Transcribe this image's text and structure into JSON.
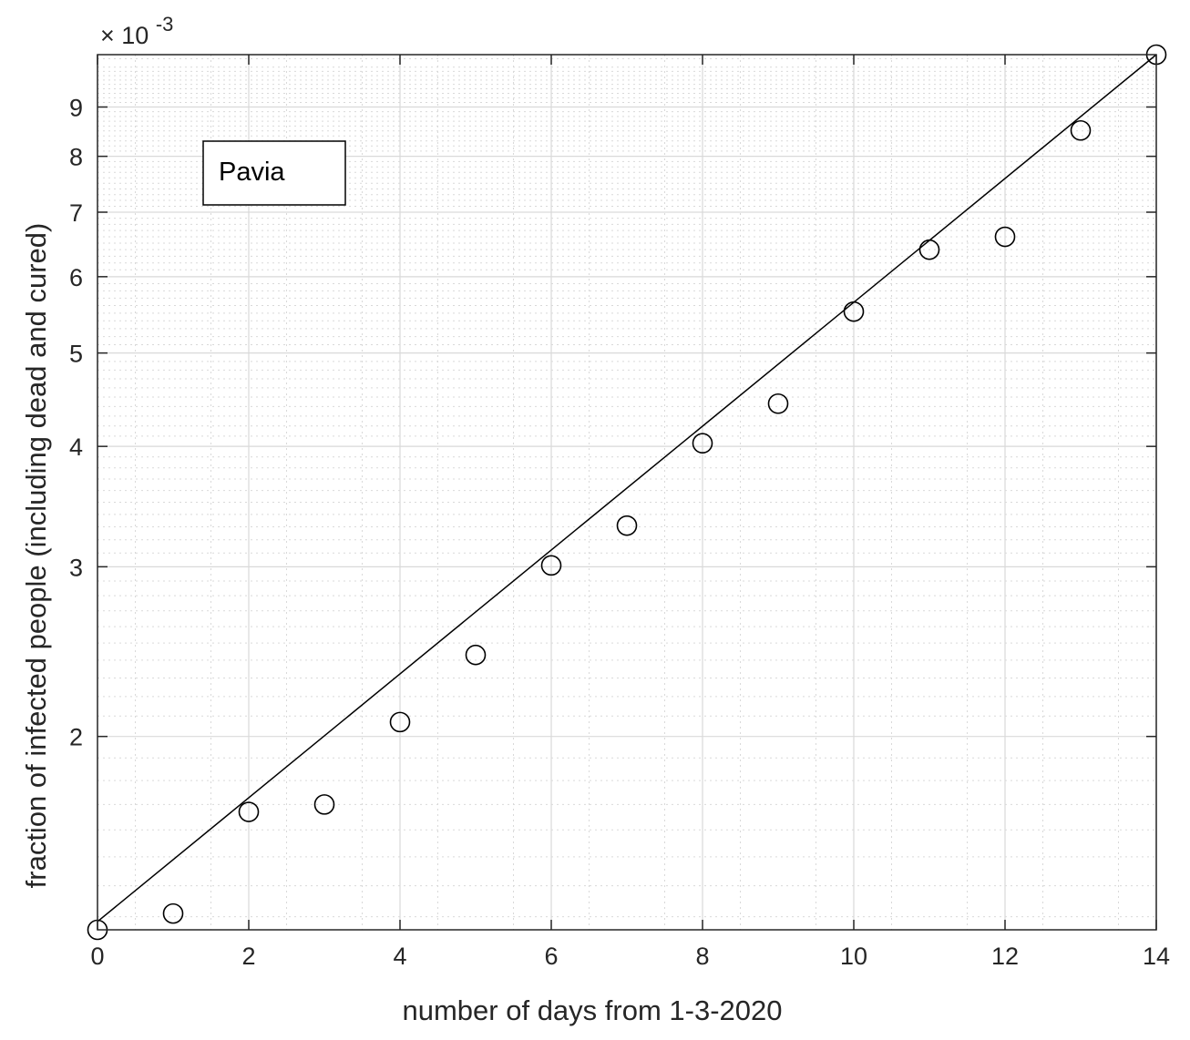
{
  "chart_data": {
    "type": "scatter",
    "title": "",
    "xlabel": "number of days from 1-3-2020",
    "ylabel": "fraction of infected people (including dead and cured)",
    "y_scale": "log",
    "y_exponent_label": "× 10",
    "y_exponent_power": "-3",
    "xlim": [
      0,
      14
    ],
    "ylim": [
      0.00126,
      0.0102
    ],
    "x_ticks": [
      0,
      2,
      4,
      6,
      8,
      10,
      12,
      14
    ],
    "x_tick_labels": [
      "0",
      "2",
      "4",
      "6",
      "8",
      "10",
      "12",
      "14"
    ],
    "y_ticks": [
      0.002,
      0.003,
      0.004,
      0.005,
      0.006,
      0.007,
      0.008,
      0.009
    ],
    "y_tick_labels": [
      "2",
      "3",
      "4",
      "5",
      "6",
      "7",
      "8",
      "9"
    ],
    "grid": true,
    "minor_grid": true,
    "annotation": "Pavia",
    "series": [
      {
        "kind": "markers",
        "marker": "circle",
        "x": [
          0,
          1,
          2,
          3,
          4,
          5,
          6,
          7,
          8,
          9,
          10,
          11,
          12,
          13,
          14
        ],
        "y": [
          0.00126,
          0.00131,
          0.00167,
          0.0017,
          0.00207,
          0.00243,
          0.00301,
          0.00331,
          0.00403,
          0.00443,
          0.00552,
          0.0064,
          0.0066,
          0.00851,
          0.0102
        ]
      },
      {
        "kind": "fit-line",
        "x": [
          0,
          14
        ],
        "y": [
          0.001285,
          0.0102
        ]
      }
    ],
    "colors": {
      "axis": "#262626",
      "grid": "#d9d9d9",
      "marker": "#000000",
      "line": "#000000"
    }
  }
}
